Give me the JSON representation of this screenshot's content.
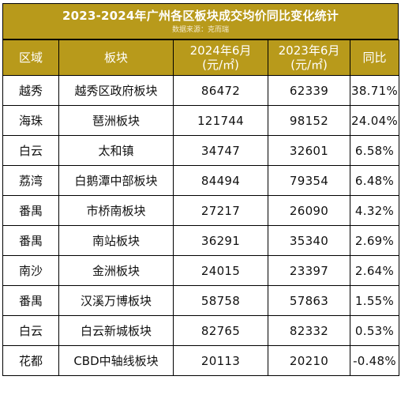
{
  "title": "2023-2024年广州各区板块成交均价同比变化统计",
  "source": "数据来源：克而瑞",
  "columns": {
    "district": "区域",
    "board": "板块",
    "price_2024_line1": "2024年6月",
    "price_2024_line2": "(元/㎡)",
    "price_2023_line1": "2023年6月",
    "price_2023_line2": "(元/㎡)",
    "yoy": "同比"
  },
  "rows": [
    {
      "district": "越秀",
      "board": "越秀区政府板块",
      "price_2024": "86472",
      "price_2023": "62339",
      "yoy": "38.71%"
    },
    {
      "district": "海珠",
      "board": "琶洲板块",
      "price_2024": "121744",
      "price_2023": "98152",
      "yoy": "24.04%"
    },
    {
      "district": "白云",
      "board": "太和镇",
      "price_2024": "34747",
      "price_2023": "32601",
      "yoy": "6.58%"
    },
    {
      "district": "荔湾",
      "board": "白鹅潭中部板块",
      "price_2024": "84494",
      "price_2023": "79354",
      "yoy": "6.48%"
    },
    {
      "district": "番禺",
      "board": "市桥南板块",
      "price_2024": "27217",
      "price_2023": "26090",
      "yoy": "4.32%"
    },
    {
      "district": "番禺",
      "board": "南站板块",
      "price_2024": "36291",
      "price_2023": "35340",
      "yoy": "2.69%"
    },
    {
      "district": "南沙",
      "board": "金洲板块",
      "price_2024": "24015",
      "price_2023": "23397",
      "yoy": "2.64%"
    },
    {
      "district": "番禺",
      "board": "汉溪万博板块",
      "price_2024": "58758",
      "price_2023": "57863",
      "yoy": "1.55%"
    },
    {
      "district": "白云",
      "board": "白云新城板块",
      "price_2024": "82765",
      "price_2023": "82332",
      "yoy": "0.53%"
    },
    {
      "district": "花都",
      "board": "CBD中轴线板块",
      "price_2024": "20113",
      "price_2023": "20210",
      "yoy": "-0.48%"
    }
  ],
  "colors": {
    "header_background": "#b89a1b",
    "header_text": "#ffffff",
    "border": "#000000"
  }
}
